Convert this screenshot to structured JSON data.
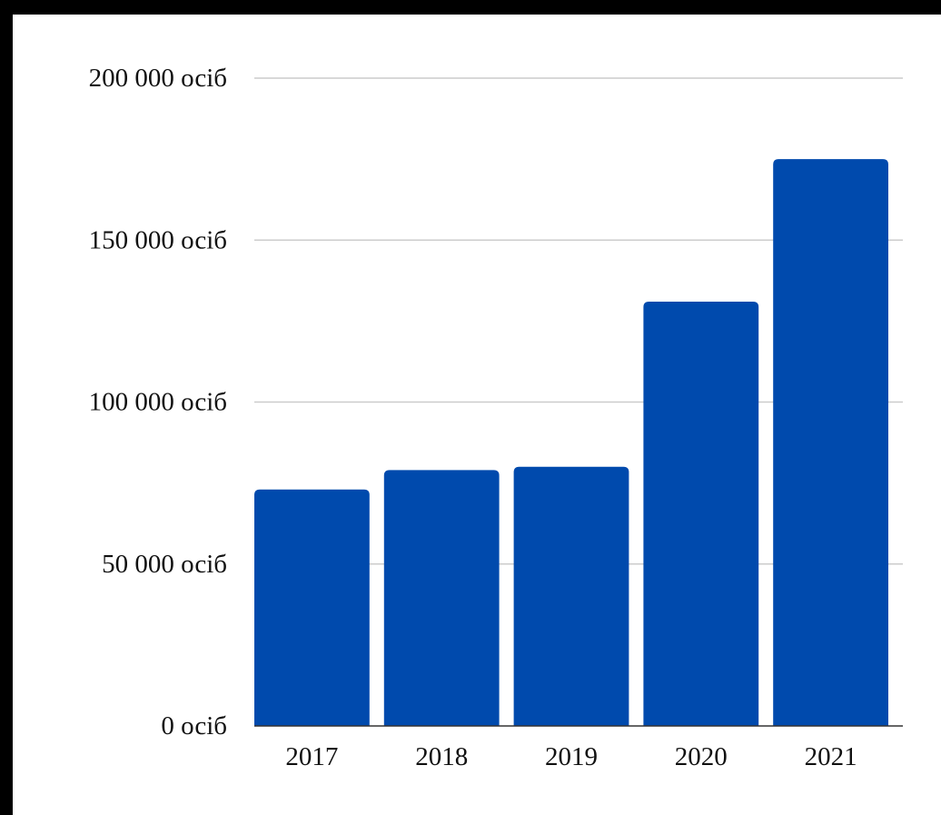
{
  "chart_data": {
    "type": "bar",
    "categories": [
      "2017",
      "2018",
      "2019",
      "2020",
      "2021"
    ],
    "values": [
      73000,
      79000,
      80000,
      131000,
      175000
    ],
    "y_tick_values": [
      0,
      50000,
      100000,
      150000,
      200000
    ],
    "y_tick_labels": [
      "0 осіб",
      "50 000 осіб",
      "100 000 осіб",
      "150 000 осіб",
      "200 000 осіб"
    ],
    "ylim": [
      0,
      200000
    ],
    "grid": true,
    "legend": "none",
    "bar_color": "#004AAD",
    "grid_color": "#CCCCCC",
    "axis_color": "#333333"
  }
}
